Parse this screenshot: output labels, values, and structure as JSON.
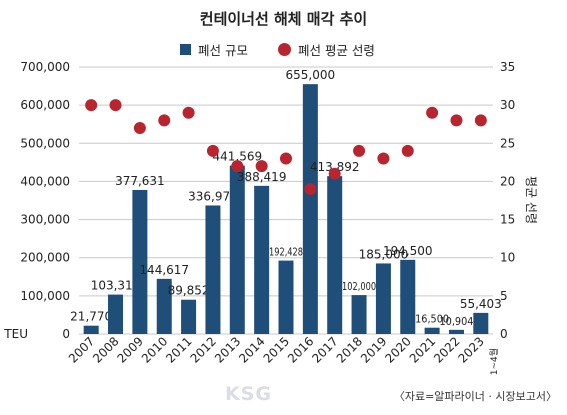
{
  "chart_data": {
    "type": "bar",
    "title": "컨테이너선 해체 매각 추이",
    "categories": [
      "2007",
      "2008",
      "2009",
      "2010",
      "2011",
      "2012",
      "2013",
      "2014",
      "2015",
      "2016",
      "2017",
      "2018",
      "2019",
      "2020",
      "2021",
      "2022",
      "2023"
    ],
    "category_sublabels": {
      "2023": "1~4월"
    },
    "series": [
      {
        "name": "폐선 규모",
        "type": "bar",
        "axis": "left",
        "color": "#1f4e79",
        "values": [
          21770,
          103315,
          377631,
          144617,
          89852,
          336971,
          441569,
          388419,
          192428,
          655000,
          413892,
          102000,
          185000,
          194500,
          16500,
          10904,
          55403
        ],
        "labels": [
          "21,770",
          "103,315",
          "377,631",
          "144,617",
          "89,852",
          "336,971",
          "441,569",
          "388,419",
          "192,428",
          "655,000",
          "413,892",
          "102,000",
          "185,000",
          "194,500",
          "16,500",
          "10,904",
          "55,403"
        ]
      },
      {
        "name": "폐선 평균 선령",
        "type": "scatter",
        "axis": "right",
        "color": "#b8252f",
        "values": [
          30,
          30,
          27,
          28,
          29,
          24,
          22,
          22,
          23,
          19,
          21,
          24,
          23,
          24,
          29,
          28,
          28
        ]
      }
    ],
    "y_left": {
      "ylim": [
        0,
        700000
      ],
      "ticks": [
        "0",
        "100,000",
        "200,000",
        "300,000",
        "400,000",
        "500,000",
        "600,000",
        "700,000"
      ],
      "unit_label": "TEU"
    },
    "y_right": {
      "ylim": [
        0,
        35
      ],
      "ticks": [
        "0",
        "5",
        "10",
        "15",
        "20",
        "25",
        "30",
        "35"
      ],
      "label": "평균 선령"
    },
    "grid": true,
    "legend_placement": "top"
  },
  "source": "〈자료=알파라이너 · 시장보고서〉",
  "watermark": "KSG"
}
